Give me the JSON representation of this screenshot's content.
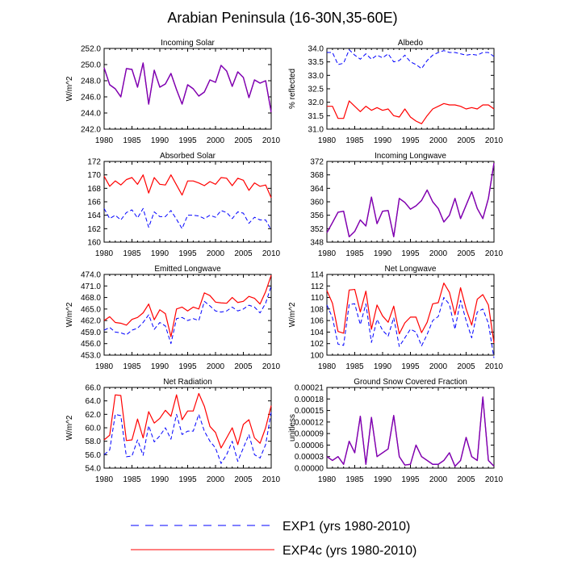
{
  "figure": {
    "title": "Arabian Peninsula (16-30N,35-60E)",
    "legend": [
      {
        "label": "EXP1 (yrs 1980-2010)",
        "color": "#0000ff",
        "dash": "dashed"
      },
      {
        "label": "EXP4c (yrs 1980-2010)",
        "color": "#ff0000",
        "dash": "solid"
      }
    ]
  },
  "chart_data": [
    {
      "type": "line",
      "title": "Incoming Solar",
      "ylabel": "W/m^2",
      "xlim": [
        1980,
        2010
      ],
      "ylim": [
        242,
        252
      ],
      "xticks": [
        1980,
        1985,
        1990,
        1995,
        2000,
        2005,
        2010
      ],
      "yticks": [
        242.0,
        244.0,
        246.0,
        248.0,
        250.0,
        252.0
      ],
      "ytick_labels": [
        "242.0",
        "244.0",
        "246.0",
        "248.0",
        "250.0",
        "252.0"
      ],
      "x": [
        1980,
        1981,
        1982,
        1983,
        1984,
        1985,
        1986,
        1987,
        1988,
        1989,
        1990,
        1991,
        1992,
        1993,
        1994,
        1995,
        1996,
        1997,
        1998,
        1999,
        2000,
        2001,
        2002,
        2003,
        2004,
        2005,
        2006,
        2007,
        2008,
        2009,
        2010
      ],
      "series": [
        {
          "name": "EXP1",
          "values": [
            249.6,
            247.5,
            247.0,
            246.0,
            249.5,
            249.4,
            247.2,
            250.2,
            245.1,
            249.3,
            247.2,
            247.6,
            248.9,
            246.9,
            245.1,
            247.5,
            247.0,
            246.1,
            246.6,
            248.1,
            247.8,
            249.9,
            249.2,
            247.3,
            249.1,
            248.4,
            245.9,
            248.1,
            247.7,
            248.0,
            244.1
          ]
        },
        {
          "name": "EXP4c",
          "values": [
            249.6,
            247.5,
            247.0,
            246.0,
            249.5,
            249.4,
            247.2,
            250.2,
            245.1,
            249.3,
            247.2,
            247.6,
            248.9,
            246.9,
            245.1,
            247.5,
            247.0,
            246.1,
            246.6,
            248.1,
            247.8,
            249.9,
            249.2,
            247.3,
            249.1,
            248.4,
            245.9,
            248.1,
            247.7,
            248.0,
            244.1
          ]
        }
      ]
    },
    {
      "type": "line",
      "title": "Albedo",
      "ylabel": "% reflected",
      "xlim": [
        1980,
        2010
      ],
      "ylim": [
        31,
        34
      ],
      "xticks": [
        1980,
        1985,
        1990,
        1995,
        2000,
        2005,
        2010
      ],
      "yticks": [
        31.0,
        31.5,
        32.0,
        32.5,
        33.0,
        33.5,
        34.0
      ],
      "ytick_labels": [
        "31.0",
        "31.5",
        "32.0",
        "32.5",
        "33.0",
        "33.5",
        "34.0"
      ],
      "x": [
        1980,
        1981,
        1982,
        1983,
        1984,
        1985,
        1986,
        1987,
        1988,
        1989,
        1990,
        1991,
        1992,
        1993,
        1994,
        1995,
        1996,
        1997,
        1998,
        1999,
        2000,
        2001,
        2002,
        2003,
        2004,
        2005,
        2006,
        2007,
        2008,
        2009,
        2010
      ],
      "series": [
        {
          "name": "EXP1",
          "values": [
            33.85,
            33.85,
            33.4,
            33.45,
            33.95,
            33.75,
            33.6,
            33.8,
            33.6,
            33.75,
            33.65,
            33.8,
            33.5,
            33.55,
            33.75,
            33.5,
            33.4,
            33.25,
            33.55,
            33.75,
            33.85,
            33.92,
            33.85,
            33.85,
            33.8,
            33.75,
            33.78,
            33.75,
            33.85,
            33.85,
            33.7
          ]
        },
        {
          "name": "EXP4c",
          "values": [
            31.85,
            31.85,
            31.4,
            31.4,
            32.05,
            31.85,
            31.65,
            31.85,
            31.7,
            31.8,
            31.7,
            31.75,
            31.5,
            31.45,
            31.75,
            31.45,
            31.3,
            31.2,
            31.5,
            31.75,
            31.85,
            31.95,
            31.9,
            31.9,
            31.85,
            31.75,
            31.8,
            31.75,
            31.9,
            31.9,
            31.75
          ]
        }
      ]
    },
    {
      "type": "line",
      "title": "Absorbed Solar",
      "ylabel": "",
      "xlim": [
        1980,
        2010
      ],
      "ylim": [
        160,
        172
      ],
      "xticks": [
        1980,
        1985,
        1990,
        1995,
        2000,
        2005,
        2010
      ],
      "yticks": [
        160,
        162,
        164,
        166,
        168,
        170,
        172
      ],
      "ytick_labels": [
        "160",
        "162",
        "164",
        "166",
        "168",
        "170",
        "172"
      ],
      "x": [
        1980,
        1981,
        1982,
        1983,
        1984,
        1985,
        1986,
        1987,
        1988,
        1989,
        1990,
        1991,
        1992,
        1993,
        1994,
        1995,
        1996,
        1997,
        1998,
        1999,
        2000,
        2001,
        2002,
        2003,
        2004,
        2005,
        2006,
        2007,
        2008,
        2009,
        2010
      ],
      "series": [
        {
          "name": "EXP1",
          "values": [
            165.0,
            163.5,
            164.0,
            163.3,
            164.4,
            164.8,
            163.6,
            165.0,
            162.2,
            164.5,
            163.8,
            163.8,
            164.7,
            163.4,
            162.0,
            164.0,
            164.0,
            163.9,
            163.5,
            164.0,
            163.7,
            164.7,
            164.4,
            163.5,
            164.5,
            164.3,
            162.8,
            163.7,
            163.3,
            163.3,
            161.8
          ]
        },
        {
          "name": "EXP4c",
          "values": [
            169.8,
            168.3,
            169.1,
            168.5,
            169.3,
            169.6,
            168.6,
            170.0,
            167.3,
            169.6,
            168.6,
            168.5,
            170.0,
            168.5,
            167.0,
            169.1,
            169.1,
            168.8,
            168.4,
            169.0,
            168.6,
            169.6,
            169.5,
            168.4,
            169.5,
            169.2,
            167.7,
            168.8,
            168.3,
            168.5,
            166.6
          ]
        }
      ]
    },
    {
      "type": "line",
      "title": "Incoming Longwave",
      "ylabel": "",
      "xlim": [
        1980,
        2010
      ],
      "ylim": [
        348,
        372
      ],
      "xticks": [
        1980,
        1985,
        1990,
        1995,
        2000,
        2005,
        2010
      ],
      "yticks": [
        348,
        352,
        356,
        360,
        364,
        368,
        372
      ],
      "ytick_labels": [
        "348",
        "352",
        "356",
        "360",
        "364",
        "368",
        "372"
      ],
      "x": [
        1980,
        1981,
        1982,
        1983,
        1984,
        1985,
        1986,
        1987,
        1988,
        1989,
        1990,
        1991,
        1992,
        1993,
        1994,
        1995,
        1996,
        1997,
        1998,
        1999,
        2000,
        2001,
        2002,
        2003,
        2004,
        2005,
        2006,
        2007,
        2008,
        2009,
        2010
      ],
      "series": [
        {
          "name": "EXP1",
          "values": [
            350.8,
            353.8,
            356.9,
            357.2,
            349.6,
            351.2,
            354.6,
            352.8,
            361.4,
            353.5,
            357.2,
            357.4,
            349.6,
            361.0,
            359.8,
            357.8,
            358.8,
            360.4,
            363.5,
            360.0,
            358.0,
            354.0,
            356.0,
            361.0,
            355.0,
            359.0,
            363.0,
            358.0,
            355.0,
            361.0,
            371.5
          ]
        },
        {
          "name": "EXP4c",
          "values": [
            350.8,
            353.8,
            356.9,
            357.2,
            349.6,
            351.2,
            354.6,
            352.8,
            361.4,
            353.5,
            357.2,
            357.4,
            349.6,
            361.0,
            359.8,
            357.8,
            358.8,
            360.4,
            363.5,
            360.0,
            358.0,
            354.0,
            356.0,
            361.0,
            355.0,
            359.0,
            363.0,
            358.0,
            355.0,
            361.0,
            371.5
          ]
        }
      ]
    },
    {
      "type": "line",
      "title": "Emitted Longwave",
      "ylabel": "W/m^2",
      "xlim": [
        1980,
        2010
      ],
      "ylim": [
        453,
        474
      ],
      "xticks": [
        1980,
        1985,
        1990,
        1995,
        2000,
        2005,
        2010
      ],
      "yticks": [
        453.0,
        456.0,
        459.0,
        462.0,
        465.0,
        468.0,
        471.0,
        474.0
      ],
      "ytick_labels": [
        "453.0",
        "456.0",
        "459.0",
        "462.0",
        "465.0",
        "468.0",
        "471.0",
        "474.0"
      ],
      "x": [
        1980,
        1981,
        1982,
        1983,
        1984,
        1985,
        1986,
        1987,
        1988,
        1989,
        1990,
        1991,
        1992,
        1993,
        1994,
        1995,
        1996,
        1997,
        1998,
        1999,
        2000,
        2001,
        2002,
        2003,
        2004,
        2005,
        2006,
        2007,
        2008,
        2009,
        2010
      ],
      "series": [
        {
          "name": "EXP1",
          "values": [
            459.5,
            460.2,
            459.0,
            458.8,
            458.3,
            459.5,
            460.0,
            461.5,
            463.5,
            459.7,
            461.5,
            460.6,
            456.0,
            462.5,
            462.8,
            462.0,
            462.5,
            462.0,
            467.0,
            465.8,
            464.5,
            464.2,
            464.5,
            465.5,
            464.5,
            465.0,
            466.0,
            465.5,
            464.0,
            466.5,
            471.0
          ]
        },
        {
          "name": "EXP4c",
          "values": [
            462.0,
            463.0,
            461.5,
            461.3,
            460.8,
            462.3,
            462.8,
            464.0,
            466.3,
            462.2,
            464.8,
            463.8,
            457.8,
            465.0,
            465.5,
            464.5,
            465.5,
            465.0,
            469.2,
            468.5,
            466.8,
            466.6,
            466.5,
            468.0,
            466.7,
            467.0,
            468.3,
            467.8,
            466.3,
            469.5,
            473.8
          ]
        }
      ]
    },
    {
      "type": "line",
      "title": "Net Longwave",
      "ylabel": "W/m^2",
      "xlim": [
        1980,
        2010
      ],
      "ylim": [
        100,
        114
      ],
      "xticks": [
        1980,
        1985,
        1990,
        1995,
        2000,
        2005,
        2010
      ],
      "yticks": [
        100,
        102,
        104,
        106,
        108,
        110,
        112,
        114
      ],
      "ytick_labels": [
        "100",
        "102",
        "104",
        "106",
        "108",
        "110",
        "112",
        "114"
      ],
      "x": [
        1980,
        1981,
        1982,
        1983,
        1984,
        1985,
        1986,
        1987,
        1988,
        1989,
        1990,
        1991,
        1992,
        1993,
        1994,
        1995,
        1996,
        1997,
        1998,
        1999,
        2000,
        2001,
        2002,
        2003,
        2004,
        2005,
        2006,
        2007,
        2008,
        2009,
        2010
      ],
      "series": [
        {
          "name": "EXP1",
          "values": [
            108.7,
            106.5,
            101.9,
            101.7,
            108.8,
            108.9,
            105.3,
            108.9,
            102.2,
            106.2,
            104.3,
            103.3,
            106.5,
            101.5,
            103.0,
            104.5,
            104.0,
            101.6,
            103.6,
            106.0,
            106.7,
            110.0,
            108.8,
            104.5,
            109.5,
            106.0,
            103.0,
            107.5,
            108.0,
            105.5,
            99.5
          ]
        },
        {
          "name": "EXP4c",
          "values": [
            111.2,
            109.0,
            104.1,
            103.8,
            111.3,
            111.4,
            107.5,
            111.1,
            104.5,
            108.7,
            106.8,
            105.7,
            108.5,
            103.7,
            105.6,
            106.6,
            106.6,
            103.9,
            105.7,
            108.9,
            109.1,
            112.5,
            110.9,
            107.0,
            111.7,
            108.0,
            105.2,
            109.7,
            110.5,
            108.7,
            102.1
          ]
        }
      ]
    },
    {
      "type": "line",
      "title": "Net Radiation",
      "ylabel": "W/m^2",
      "xlim": [
        1980,
        2010
      ],
      "ylim": [
        54,
        66
      ],
      "xticks": [
        1980,
        1985,
        1990,
        1995,
        2000,
        2005,
        2010
      ],
      "yticks": [
        54.0,
        56.0,
        58.0,
        60.0,
        62.0,
        64.0,
        66.0
      ],
      "ytick_labels": [
        "54.0",
        "56.0",
        "58.0",
        "60.0",
        "62.0",
        "64.0",
        "66.0"
      ],
      "x": [
        1980,
        1981,
        1982,
        1983,
        1984,
        1985,
        1986,
        1987,
        1988,
        1989,
        1990,
        1991,
        1992,
        1993,
        1994,
        1995,
        1996,
        1997,
        1998,
        1999,
        2000,
        2001,
        2002,
        2003,
        2004,
        2005,
        2006,
        2007,
        2008,
        2009,
        2010
      ],
      "series": [
        {
          "name": "EXP1",
          "values": [
            56.0,
            56.7,
            62.0,
            61.8,
            55.7,
            55.8,
            58.2,
            55.9,
            60.3,
            57.9,
            58.8,
            60.0,
            58.3,
            62.0,
            59.0,
            59.5,
            59.5,
            62.0,
            59.5,
            58.0,
            57.0,
            54.7,
            56.0,
            58.0,
            55.0,
            57.0,
            59.0,
            56.0,
            55.5,
            57.5,
            62.3
          ]
        },
        {
          "name": "EXP4c",
          "values": [
            58.2,
            58.9,
            64.9,
            64.8,
            58.1,
            58.2,
            61.3,
            58.5,
            62.4,
            60.7,
            61.4,
            62.6,
            61.7,
            64.9,
            61.2,
            62.5,
            62.5,
            65.1,
            63.2,
            60.2,
            59.3,
            57.0,
            58.5,
            60.0,
            57.5,
            60.5,
            61.2,
            58.5,
            57.7,
            60.0,
            63.3
          ]
        }
      ]
    },
    {
      "type": "line",
      "title": "Ground Snow Covered Fraction",
      "ylabel": "unitless",
      "xlim": [
        1980,
        2010
      ],
      "ylim": [
        0,
        0.00021
      ],
      "xticks": [
        1980,
        1985,
        1990,
        1995,
        2000,
        2005,
        2010
      ],
      "yticks": [
        0.0,
        3e-05,
        6e-05,
        9e-05,
        0.00012,
        0.00015,
        0.00018,
        0.00021
      ],
      "ytick_labels": [
        "0.00000",
        "0.00003",
        "0.00006",
        "0.00009",
        "0.00012",
        "0.00015",
        "0.00018",
        "0.00021"
      ],
      "x": [
        1980,
        1981,
        1982,
        1983,
        1984,
        1985,
        1986,
        1987,
        1988,
        1989,
        1990,
        1991,
        1992,
        1993,
        1994,
        1995,
        1996,
        1997,
        1998,
        1999,
        2000,
        2001,
        2002,
        2003,
        2004,
        2005,
        2006,
        2007,
        2008,
        2009,
        2010
      ],
      "series": [
        {
          "name": "EXP1",
          "values": [
            3e-05,
            2e-05,
            3e-05,
            1e-05,
            7e-05,
            4e-05,
            0.000135,
            1e-05,
            0.000132,
            3e-05,
            4e-05,
            5e-05,
            0.000137,
            3e-05,
            8e-06,
            1e-05,
            6e-05,
            3e-05,
            2e-05,
            1e-05,
            1e-05,
            2e-05,
            4e-05,
            5e-06,
            2e-05,
            8e-05,
            3e-05,
            2e-05,
            0.000185,
            2e-05,
            5e-06
          ]
        },
        {
          "name": "EXP4c",
          "values": [
            3e-05,
            2e-05,
            3e-05,
            1e-05,
            7e-05,
            4e-05,
            0.000135,
            1e-05,
            0.000132,
            3e-05,
            4e-05,
            5e-05,
            0.000137,
            3e-05,
            8e-06,
            1e-05,
            6e-05,
            3e-05,
            2e-05,
            1e-05,
            1e-05,
            2e-05,
            4e-05,
            5e-06,
            2e-05,
            8e-05,
            3e-05,
            2e-05,
            0.000185,
            2e-05,
            5e-06
          ]
        }
      ]
    }
  ]
}
